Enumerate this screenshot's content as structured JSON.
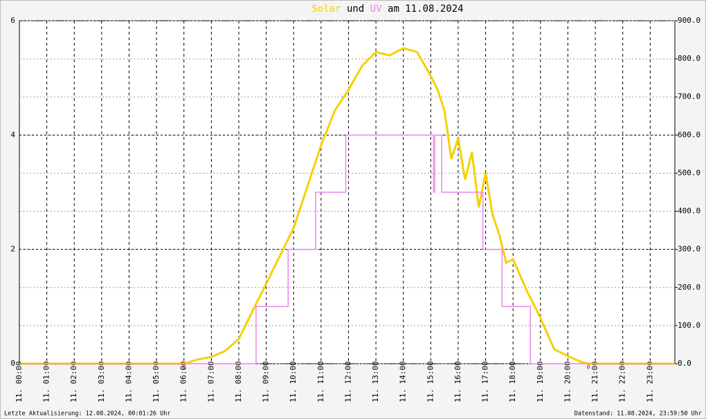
{
  "chart_data": {
    "type": "line",
    "title_word": "und",
    "title_suffix": "am 11.08.2024",
    "xlim": [
      0,
      23.9
    ],
    "xticks": [
      {
        "value": 0,
        "label": "11. 00:00"
      },
      {
        "value": 1,
        "label": "11. 01:00"
      },
      {
        "value": 2,
        "label": "11. 02:00"
      },
      {
        "value": 3,
        "label": "11. 03:00"
      },
      {
        "value": 4,
        "label": "11. 04:00"
      },
      {
        "value": 5,
        "label": "11. 05:00"
      },
      {
        "value": 6,
        "label": "11. 06:00"
      },
      {
        "value": 7,
        "label": "11. 07:00"
      },
      {
        "value": 8,
        "label": "11. 08:00"
      },
      {
        "value": 9,
        "label": "11. 09:00"
      },
      {
        "value": 10,
        "label": "11. 10:00"
      },
      {
        "value": 11,
        "label": "11. 11:00"
      },
      {
        "value": 12,
        "label": "11. 12:00"
      },
      {
        "value": 13,
        "label": "11. 13:00"
      },
      {
        "value": 14,
        "label": "11. 14:00"
      },
      {
        "value": 15,
        "label": "11. 15:00"
      },
      {
        "value": 16,
        "label": "11. 16:00"
      },
      {
        "value": 17,
        "label": "11. 17:00"
      },
      {
        "value": 18,
        "label": "11. 18:00"
      },
      {
        "value": 19,
        "label": "11. 19:00"
      },
      {
        "value": 20,
        "label": "11. 20:00"
      },
      {
        "value": 21,
        "label": "11. 21:00"
      },
      {
        "value": 22,
        "label": "11. 22:00"
      },
      {
        "value": 23,
        "label": "11. 23:00"
      }
    ],
    "ylim": [
      0,
      6
    ],
    "yticks": [
      0,
      2,
      4,
      6
    ],
    "y2lim": [
      0,
      900
    ],
    "y2ticks": [
      {
        "value": 0,
        "label": "0.0"
      },
      {
        "value": 100,
        "label": "100.0"
      },
      {
        "value": 200,
        "label": "200.0"
      },
      {
        "value": 300,
        "label": "300.0"
      },
      {
        "value": 400,
        "label": "400.0"
      },
      {
        "value": 500,
        "label": "500.0"
      },
      {
        "value": 600,
        "label": "600.0"
      },
      {
        "value": 700,
        "label": "700.0"
      },
      {
        "value": 800,
        "label": "800.0"
      },
      {
        "value": 900,
        "label": "900.0"
      }
    ],
    "grid": true,
    "series": [
      {
        "name": "Solar",
        "color": "#f5d000",
        "axis": "y2",
        "x": [
          0,
          6,
          6.5,
          7,
          7.5,
          8,
          8.5,
          9,
          9.5,
          10,
          10.5,
          11,
          11.5,
          12,
          12.5,
          13,
          13.5,
          14,
          14.5,
          15,
          15.25,
          15.5,
          15.75,
          16,
          16.25,
          16.5,
          16.75,
          17,
          17.25,
          17.5,
          17.75,
          18,
          18.5,
          19,
          19.5,
          20,
          20.5,
          20.75,
          21,
          23.9
        ],
        "values": [
          0,
          0,
          11,
          18,
          33,
          65,
          138,
          210,
          283,
          356,
          465,
          573,
          664,
          719,
          782,
          818,
          809,
          828,
          818,
          755,
          719,
          664,
          537,
          592,
          483,
          555,
          410,
          501,
          392,
          338,
          265,
          274,
          192,
          120,
          38,
          20,
          4,
          0,
          0,
          0
        ]
      },
      {
        "name": "UV",
        "color": "#ee82ee",
        "axis": "y",
        "x": [
          0,
          8.63,
          8.63,
          9.8,
          9.8,
          10.8,
          10.8,
          11.9,
          11.9,
          15.1,
          15.1,
          15.15,
          15.15,
          15.4,
          15.4,
          16.9,
          16.9,
          17.6,
          17.6,
          18.63,
          18.63,
          23.9
        ],
        "values": [
          0,
          0,
          1,
          1,
          2,
          2,
          3,
          3,
          4,
          4,
          3,
          3,
          4,
          4,
          3,
          3,
          2,
          2,
          1,
          1,
          0,
          0
        ]
      }
    ],
    "annotations": [
      {
        "text": "0",
        "x": 6
      },
      {
        "text": "0",
        "x": 20.75
      }
    ],
    "footer_left": "Letzte Aktualisierung: 12.08.2024, 00:01:26 Uhr",
    "footer_right": "Datenstand: 11.08.2024, 23:59:50 Uhr"
  }
}
